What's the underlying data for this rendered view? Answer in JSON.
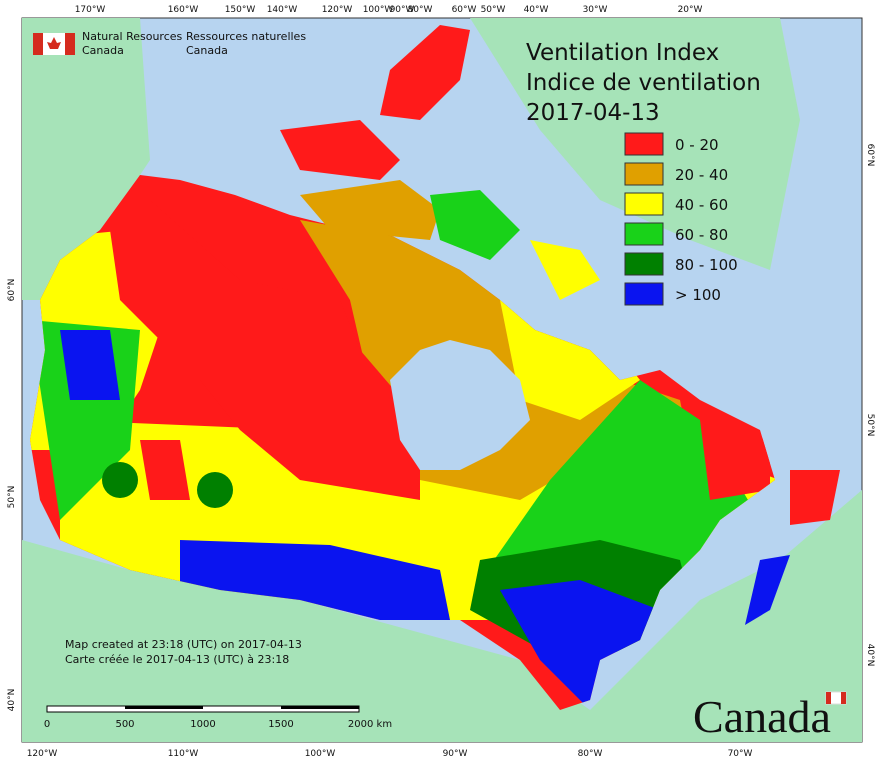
{
  "header": {
    "org_en": [
      "Natural Resources",
      "Canada"
    ],
    "org_fr": [
      "Ressources naturelles",
      "Canada"
    ]
  },
  "title": [
    "Ventilation Index",
    "Indice de ventilation",
    "2017-04-13"
  ],
  "legend": [
    {
      "label": "0 - 20",
      "color": "#ff1a1a"
    },
    {
      "label": "20 - 40",
      "color": "#e0a000"
    },
    {
      "label": "40 - 60",
      "color": "#ffff00"
    },
    {
      "label": "60 - 80",
      "color": "#19d219"
    },
    {
      "label": "80 - 100",
      "color": "#008000"
    },
    {
      "label": "> 100",
      "color": "#0a14f0"
    }
  ],
  "longitude_top": [
    "170°W",
    "160°W",
    "150°W",
    "140°W",
    "120°W",
    "100°W",
    "90°W",
    "80°W",
    "60°W",
    "50°W",
    "40°W",
    "30°W",
    "20°W"
  ],
  "longitude_bottom": [
    "120°W",
    "110°W",
    "100°W",
    "90°W",
    "80°W",
    "70°W"
  ],
  "latitude_left": [
    "60°N",
    "50°N",
    "40°N"
  ],
  "latitude_right": [
    "60°N",
    "50°N",
    "40°N"
  ],
  "footer": [
    "Map created at 23:18 (UTC) on 2017-04-13",
    "Carte créée le 2017-04-13 (UTC) à 23:18"
  ],
  "scale": [
    "0",
    "500",
    "1000",
    "1500",
    "2000 km"
  ],
  "wordmark": "Canada"
}
